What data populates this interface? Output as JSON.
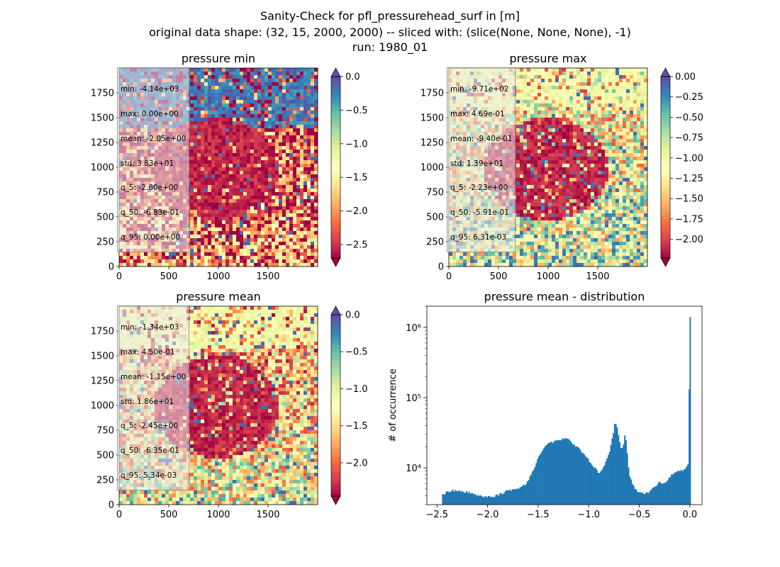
{
  "figure": {
    "title_lines": [
      "Sanity-Check for pfl_pressurehead_surf in [m]",
      "original data shape: (32, 15, 2000, 2000) -- sliced with: (slice(None, None, None), -1)",
      "run: 1980_01"
    ]
  },
  "colors": {
    "spectral": [
      "#9e0142",
      "#d53e4f",
      "#f46d43",
      "#fdae61",
      "#fee08b",
      "#ffffbf",
      "#e6f598",
      "#abdda4",
      "#66c2a5",
      "#3288bd",
      "#5e4fa2"
    ],
    "hist_bar": "#1f77b4"
  },
  "chart_data": [
    {
      "type": "heatmap",
      "name": "pressure_min",
      "title": "pressure min",
      "xlim": [
        0,
        2000
      ],
      "ylim": [
        0,
        2000
      ],
      "xticks": [
        "0",
        "500",
        "1000",
        "1500"
      ],
      "yticks": [
        "0",
        "250",
        "500",
        "750",
        "1000",
        "1250",
        "1500",
        "1750"
      ],
      "colorbar": {
        "range": [
          -2.7,
          0.0
        ],
        "ticks": [
          "0.0",
          "−0.5",
          "−1.0",
          "−1.5",
          "−2.0",
          "−2.5"
        ],
        "tick_values": [
          0,
          -0.5,
          -1.0,
          -1.5,
          -2.0,
          -2.5
        ],
        "extend": "both"
      },
      "stats": [
        "min: -4.14e+03",
        "max: 0.00e+00",
        "mean: -2.05e+00",
        "std: 3.83e+01",
        "q_5: -2.60e+00",
        "q_50: -6.83e-01",
        "q_95: 0.00e+00"
      ]
    },
    {
      "type": "heatmap",
      "name": "pressure_max",
      "title": "pressure max",
      "xlim": [
        0,
        2000
      ],
      "ylim": [
        0,
        2000
      ],
      "xticks": [
        "0",
        "500",
        "1000",
        "1500"
      ],
      "yticks": [
        "0",
        "250",
        "500",
        "750",
        "1000",
        "1250",
        "1500",
        "1750"
      ],
      "colorbar": {
        "range": [
          -2.23,
          0.0
        ],
        "ticks": [
          "0.00",
          "−0.25",
          "−0.50",
          "−0.75",
          "−1.00",
          "−1.25",
          "−1.50",
          "−1.75",
          "−2.00"
        ],
        "tick_values": [
          0,
          -0.25,
          -0.5,
          -0.75,
          -1.0,
          -1.25,
          -1.5,
          -1.75,
          -2.0
        ],
        "extend": "both"
      },
      "stats": [
        "min: -9.71e+02",
        "max: 4.69e-01",
        "mean: -9.40e-01",
        "std: 1.39e+01",
        "q_5: -2.23e+00",
        "q_50: -5.91e-01",
        "q_95: 6.31e-03"
      ]
    },
    {
      "type": "heatmap",
      "name": "pressure_mean",
      "title": "pressure mean",
      "xlim": [
        0,
        2000
      ],
      "ylim": [
        0,
        2000
      ],
      "xticks": [
        "0",
        "500",
        "1000",
        "1500"
      ],
      "yticks": [
        "0",
        "250",
        "500",
        "750",
        "1000",
        "1250",
        "1500",
        "1750"
      ],
      "colorbar": {
        "range": [
          -2.45,
          0.0
        ],
        "ticks": [
          "0.0",
          "−0.5",
          "−1.0",
          "−1.5",
          "−2.0"
        ],
        "tick_values": [
          0,
          -0.5,
          -1.0,
          -1.5,
          -2.0
        ],
        "extend": "both"
      },
      "stats": [
        "min: -1.34e+03",
        "max: 4.50e-01",
        "mean: -1.15e+00",
        "std: 1.86e+01",
        "q_5: -2.45e+00",
        "q_50: -6.35e-01",
        "q_95: 5.34e-03"
      ]
    },
    {
      "type": "bar",
      "name": "pressure_mean_distribution",
      "title": "pressure mean - distribution",
      "ylabel": "# of occurrence",
      "yscale": "log",
      "xlim": [
        -2.6,
        0.12
      ],
      "ylim": [
        3000,
        2000000
      ],
      "xticks": [
        "−2.5",
        "−2.0",
        "−1.5",
        "−1.0",
        "−0.5",
        "0.0"
      ],
      "xtick_values": [
        -2.5,
        -2.0,
        -1.5,
        -1.0,
        -0.5,
        0.0
      ],
      "ytick_labels": [
        "10⁴",
        "10⁵",
        "10⁶"
      ],
      "ytick_values": [
        10000,
        100000,
        1000000
      ],
      "bin_range": [
        -2.45,
        0.0
      ],
      "bin_width": 0.0125,
      "control_points": [
        [
          -2.45,
          4200
        ],
        [
          -2.4,
          4500
        ],
        [
          -2.35,
          4800
        ],
        [
          -2.3,
          4700
        ],
        [
          -2.2,
          4500
        ],
        [
          -2.1,
          4100
        ],
        [
          -2.0,
          3800
        ],
        [
          -1.9,
          4100
        ],
        [
          -1.8,
          4800
        ],
        [
          -1.7,
          5000
        ],
        [
          -1.62,
          5900
        ],
        [
          -1.55,
          9000
        ],
        [
          -1.5,
          14000
        ],
        [
          -1.45,
          19000
        ],
        [
          -1.4,
          22000
        ],
        [
          -1.3,
          25000
        ],
        [
          -1.25,
          26000
        ],
        [
          -1.2,
          25000
        ],
        [
          -1.1,
          19000
        ],
        [
          -1.0,
          13000
        ],
        [
          -0.9,
          8500
        ],
        [
          -0.86,
          10000
        ],
        [
          -0.8,
          16000
        ],
        [
          -0.76,
          30000
        ],
        [
          -0.74,
          46000
        ],
        [
          -0.72,
          38000
        ],
        [
          -0.7,
          26000
        ],
        [
          -0.68,
          19000
        ],
        [
          -0.66,
          20000
        ],
        [
          -0.645,
          30000
        ],
        [
          -0.63,
          24000
        ],
        [
          -0.6,
          8000
        ],
        [
          -0.55,
          5200
        ],
        [
          -0.5,
          4500
        ],
        [
          -0.45,
          4300
        ],
        [
          -0.4,
          4600
        ],
        [
          -0.35,
          5300
        ],
        [
          -0.3,
          6200
        ],
        [
          -0.25,
          6000
        ],
        [
          -0.2,
          7500
        ],
        [
          -0.15,
          8500
        ],
        [
          -0.1,
          9200
        ],
        [
          -0.05,
          9500
        ],
        [
          -0.02,
          11000
        ],
        [
          -0.012,
          15000
        ],
        [
          0.0,
          1400000
        ]
      ]
    }
  ]
}
